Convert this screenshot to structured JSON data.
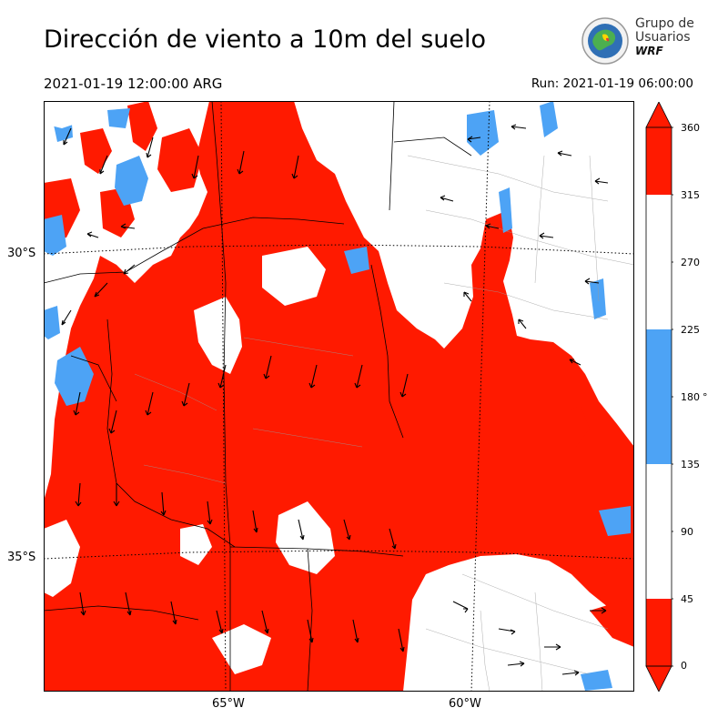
{
  "title": "Dirección de viento a 10m del suelo",
  "valid_time": "2021-01-19 12:00:00 ARG",
  "run_time": "Run: 2021-01-19 06:00:00",
  "logo": {
    "line1": "Grupo de",
    "line2": "Usuarios",
    "line3": "WRF"
  },
  "axes": {
    "lat_labels": [
      "30°S",
      "35°S"
    ],
    "lon_labels": [
      "65°W",
      "60°W"
    ]
  },
  "colorbar": {
    "ticks": [
      "0",
      "45",
      "90",
      "135",
      "180",
      "225",
      "270",
      "315",
      "360"
    ],
    "unit": "°",
    "colors": [
      "#ff1a00",
      "#ffffff",
      "#ffffff",
      "#4da3f5",
      "#4da3f5",
      "#ffffff",
      "#ffffff",
      "#ff1a00"
    ]
  },
  "colors": {
    "red": "#ff1a00",
    "blue": "#4da3f5",
    "white": "#ffffff",
    "border": "#000000"
  }
}
